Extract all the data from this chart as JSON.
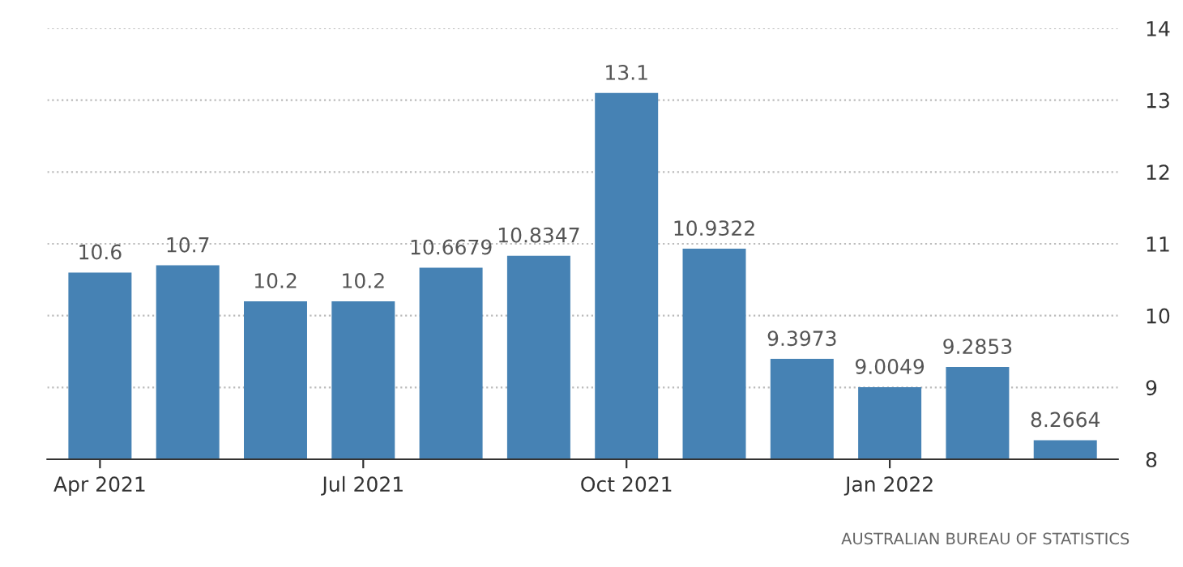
{
  "chart_data": {
    "type": "bar",
    "categories": [
      "Apr 2021",
      null,
      null,
      "Jul 2021",
      null,
      null,
      "Oct 2021",
      null,
      null,
      "Jan 2022",
      null,
      null
    ],
    "values": [
      10.6,
      10.7,
      10.2,
      10.2,
      10.6679,
      10.8347,
      13.1,
      10.9322,
      9.3973,
      9.0049,
      9.2853,
      8.2664
    ],
    "color": "#4682b4",
    "ylim": [
      8,
      14
    ],
    "yticks": [
      8,
      9,
      10,
      11,
      12,
      13,
      14
    ],
    "grid": "y",
    "data_labels": true,
    "annotations": [
      "AUSTRALIAN BUREAU OF STATISTICS"
    ]
  }
}
